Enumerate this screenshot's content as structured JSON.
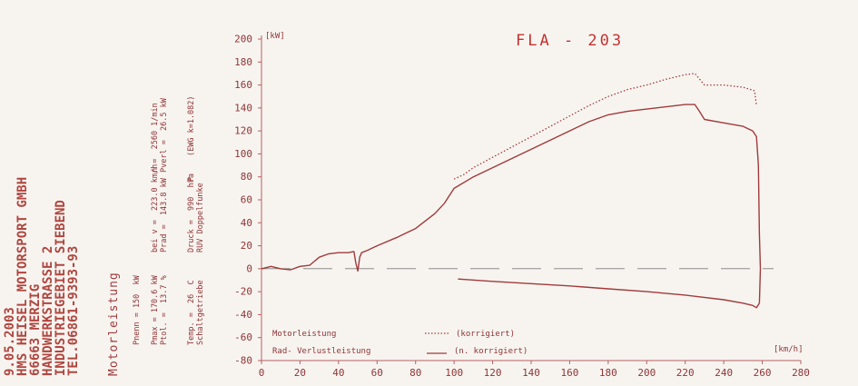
{
  "header": {
    "date": "9.05.2003",
    "company": [
      "HMS HEISEL MOTORSPORT GMBH",
      "66663 MERZIG",
      "HANDWERKSTRASSE 2",
      "INDUSTRIEGEBIET SIEBEND",
      "TEL.06861-9393-93"
    ],
    "report_title": "Motorleistung"
  },
  "params": {
    "pnenn": "Pnenn = 150  kW",
    "pmax": "Pmax = 170.6 kW",
    "ptol": "Ptol. =  13.7 %",
    "bei_v": "bei v =  223.0 km/h",
    "prad": "Prad =  143.8 kW",
    "n": "n =  2560 1/min",
    "pverl": "Pverl =  26.5 kW",
    "temp": "Temp. =  26  C",
    "gearbox": "Schaltgetriebe",
    "druck": "Druck =  990  hPa",
    "ignition": "RUV Doppelfunke",
    "p_flag": "P",
    "ewg": "(EWG k=1.082)"
  },
  "chart_data": {
    "type": "line",
    "title": "FLA - 203",
    "xlabel": "[km/h]",
    "ylabel": "[kW]",
    "xlim": [
      0,
      280
    ],
    "ylim": [
      -80,
      200
    ],
    "xticks": [
      0,
      20,
      40,
      60,
      80,
      100,
      120,
      140,
      160,
      180,
      200,
      220,
      240,
      260,
      280
    ],
    "yticks": [
      200,
      180,
      160,
      140,
      120,
      100,
      80,
      60,
      40,
      20,
      0,
      -20,
      -40,
      -60,
      -80
    ],
    "legend": [
      "Motorleistung",
      "(korrigiert)",
      "Rad- Verlustleistung",
      "(n. korrigiert)"
    ],
    "colors": {
      "line": "#a13a3a",
      "axis": "#b86060",
      "title": "#c4322e"
    },
    "series": [
      {
        "style": "dotted",
        "x": [
          100,
          105,
          110,
          120,
          130,
          140,
          150,
          160,
          170,
          180,
          190,
          200,
          210,
          220,
          225,
          230,
          240,
          250,
          256,
          257
        ],
        "y": [
          78,
          82,
          88,
          97,
          106,
          115,
          124,
          133,
          142,
          150,
          156,
          160,
          165,
          169,
          170,
          160,
          160,
          158,
          155,
          142
        ]
      },
      {
        "style": "solid",
        "x": [
          0,
          5,
          10,
          15,
          20,
          25,
          30,
          35,
          40,
          45,
          48,
          49,
          50,
          51,
          52,
          55,
          60,
          70,
          80,
          90,
          95,
          100,
          110,
          120,
          130,
          140,
          150,
          160,
          170,
          180,
          190,
          200,
          210,
          220,
          225,
          227,
          230,
          240,
          250,
          255,
          257,
          258,
          258.5,
          259,
          258.5
        ],
        "y": [
          0,
          2,
          0,
          -1,
          2,
          3,
          10,
          13,
          14,
          14,
          15,
          5,
          -2,
          10,
          14,
          16,
          20,
          27,
          35,
          48,
          57,
          70,
          80,
          88,
          96,
          104,
          112,
          120,
          128,
          134,
          137,
          139,
          141,
          143,
          143,
          138,
          130,
          127,
          124,
          120,
          115,
          90,
          30,
          0,
          -30
        ]
      },
      {
        "style": "solid",
        "x": [
          102,
          120,
          140,
          160,
          180,
          200,
          220,
          240,
          250,
          255,
          257,
          258.5
        ],
        "y": [
          -9,
          -11,
          -13,
          -15,
          -17.5,
          -20,
          -23,
          -27,
          -30,
          -32,
          -34,
          -30
        ]
      }
    ]
  }
}
